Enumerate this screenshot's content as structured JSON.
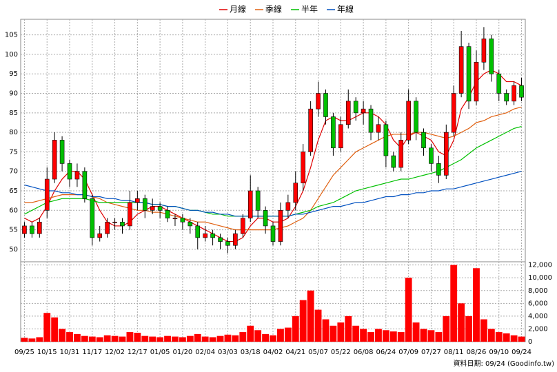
{
  "chart_data": {
    "type": "candlestick",
    "categories": [
      "09/25",
      null,
      null,
      "10/15",
      null,
      null,
      "10/31",
      null,
      null,
      "11/17",
      null,
      null,
      "12/02",
      null,
      null,
      "12/17",
      null,
      null,
      "01/05",
      null,
      null,
      "01/20",
      null,
      null,
      "02/04",
      null,
      null,
      "03/03",
      null,
      null,
      "03/18",
      null,
      null,
      "04/02",
      null,
      null,
      "04/21",
      null,
      null,
      "05/07",
      null,
      null,
      "05/22",
      null,
      null,
      "06/08",
      null,
      null,
      "06/24",
      null,
      null,
      "07/09",
      null,
      null,
      "07/27",
      null,
      null,
      "08/11",
      null,
      null,
      "08/26",
      null,
      null,
      "09/10",
      null,
      null,
      "09/24"
    ],
    "open": [
      54,
      56,
      54,
      60,
      68,
      78,
      72,
      68,
      70,
      63,
      53,
      54,
      57,
      57,
      56,
      62,
      63,
      60,
      61,
      60,
      58,
      58,
      57,
      56,
      53,
      54,
      53,
      52,
      51,
      54,
      58,
      65,
      60,
      56,
      52,
      60,
      62,
      67,
      75,
      86,
      90,
      84,
      76,
      82,
      88,
      85,
      86,
      80,
      82,
      74,
      71,
      78,
      88,
      80,
      76,
      72,
      69,
      80,
      90,
      102,
      88,
      98,
      104,
      95,
      90,
      88,
      92
    ],
    "high": [
      57,
      57,
      58,
      71,
      80,
      79,
      73,
      72,
      71,
      64,
      56,
      58,
      58,
      58,
      65,
      65,
      64,
      63,
      62,
      61,
      59,
      59,
      58,
      57,
      56,
      55,
      54,
      53,
      55,
      59,
      69,
      66,
      61,
      57,
      62,
      64,
      70,
      77,
      88,
      93,
      91,
      85,
      84,
      91,
      89,
      88,
      87,
      84,
      83,
      75,
      80,
      91,
      89,
      81,
      77,
      74,
      82,
      92,
      106,
      103,
      101,
      107,
      105,
      96,
      91,
      93,
      94
    ],
    "low": [
      53,
      53,
      53,
      58,
      67,
      70,
      66,
      66,
      62,
      51,
      52,
      53,
      55,
      54,
      55,
      60,
      58,
      59,
      58,
      57,
      56,
      55,
      54,
      50,
      52,
      51,
      50,
      49,
      50,
      53,
      57,
      58,
      54,
      51,
      51,
      58,
      60,
      65,
      74,
      84,
      82,
      74,
      75,
      81,
      83,
      82,
      78,
      78,
      71,
      70,
      70,
      77,
      78,
      74,
      70,
      67,
      68,
      79,
      89,
      86,
      87,
      96,
      93,
      88,
      87,
      87,
      88
    ],
    "close": [
      56,
      54,
      57,
      68,
      78,
      72,
      68,
      70,
      63,
      53,
      54,
      57,
      57,
      56,
      62,
      63,
      60,
      61,
      60,
      58,
      58,
      57,
      56,
      53,
      54,
      53,
      52,
      51,
      54,
      58,
      65,
      60,
      56,
      52,
      60,
      62,
      67,
      75,
      86,
      90,
      84,
      76,
      82,
      88,
      85,
      86,
      80,
      82,
      74,
      71,
      78,
      88,
      80,
      76,
      72,
      69,
      80,
      90,
      102,
      88,
      98,
      104,
      95,
      90,
      88,
      92,
      89
    ],
    "up_color": "#ff0000",
    "down_color": "#00c000",
    "series": [
      {
        "name": "月線",
        "color": "#e00000",
        "values": [
          58,
          57,
          58,
          61,
          65,
          68,
          70,
          70,
          68,
          64,
          60,
          57,
          56,
          56,
          57,
          59,
          60,
          61,
          61,
          60,
          59,
          58,
          57,
          56,
          55,
          54,
          53,
          52,
          52,
          53,
          56,
          58,
          58,
          57,
          57,
          58,
          61,
          65,
          71,
          78,
          83,
          84,
          83,
          83,
          84,
          85,
          85,
          84,
          82,
          78,
          76,
          79,
          80,
          79,
          78,
          75,
          74,
          78,
          86,
          89,
          93,
          95,
          96,
          95,
          93,
          93,
          92
        ]
      },
      {
        "name": "季線",
        "color": "#e06010",
        "values": [
          62,
          62,
          62.5,
          63,
          63.5,
          64,
          64,
          64,
          64,
          63.5,
          63,
          62,
          61.5,
          61,
          60.5,
          60,
          60,
          59.5,
          59.5,
          59,
          58.5,
          58,
          57.5,
          57,
          57,
          56.5,
          56,
          55.5,
          55,
          55,
          55,
          55,
          55,
          55,
          55.5,
          56,
          57,
          58,
          60,
          63,
          66,
          69,
          71,
          73,
          75,
          76,
          77,
          78,
          79,
          79.5,
          79.5,
          79.5,
          80,
          80,
          79.5,
          79,
          78.5,
          79,
          80,
          81,
          82.5,
          83,
          84,
          84.5,
          85,
          86,
          86.5
        ]
      },
      {
        "name": "半年",
        "color": "#00c000",
        "values": [
          59,
          60,
          61,
          62,
          62.5,
          63,
          63,
          63,
          63,
          62.5,
          62,
          62,
          62,
          62,
          62,
          62,
          62,
          61.5,
          61.5,
          61,
          61,
          60.5,
          60,
          60,
          59.5,
          59,
          59,
          58.5,
          58.5,
          58.5,
          58.5,
          58.5,
          58.5,
          58.5,
          58.5,
          58.5,
          59,
          59.5,
          60,
          61,
          61.5,
          62,
          63,
          64,
          65,
          65.5,
          66,
          66.5,
          67,
          67.5,
          68,
          68,
          68.5,
          69,
          69.5,
          70,
          71,
          72,
          73,
          74.5,
          76,
          77,
          78,
          79,
          80,
          81,
          81.5
        ]
      },
      {
        "name": "年線",
        "color": "#0050c0",
        "values": [
          66.5,
          66,
          65.5,
          65,
          65,
          64.5,
          64.5,
          64,
          64,
          63.5,
          63.5,
          63,
          63,
          62.5,
          62.5,
          62,
          62,
          61.5,
          61.5,
          61,
          61,
          60.5,
          60,
          60,
          59.5,
          59.5,
          59,
          59,
          58.5,
          58.5,
          58.5,
          58.5,
          58.5,
          58.5,
          58.5,
          58.5,
          59,
          59,
          59.5,
          60,
          60.5,
          61,
          61,
          61.5,
          62,
          62,
          62.5,
          63,
          63.5,
          63.5,
          64,
          64,
          64.5,
          64.5,
          65,
          65,
          65.5,
          65.5,
          66,
          66.5,
          67,
          67.5,
          68,
          68.5,
          69,
          69.5,
          70
        ]
      }
    ],
    "ylim": [
      46.8,
      109
    ],
    "yticks": [
      50,
      55,
      60,
      65,
      70,
      75,
      80,
      85,
      90,
      95,
      100,
      105
    ],
    "grid": true,
    "volume": {
      "color": "#ff0000",
      "values": [
        600,
        500,
        700,
        4500,
        3800,
        2000,
        1500,
        1200,
        900,
        800,
        700,
        1000,
        900,
        800,
        1500,
        1400,
        900,
        800,
        700,
        900,
        800,
        700,
        900,
        1200,
        800,
        700,
        900,
        1100,
        1000,
        1500,
        2500,
        1800,
        1200,
        1000,
        2000,
        2200,
        4000,
        6500,
        8000,
        5000,
        3500,
        2500,
        3000,
        4000,
        2500,
        2000,
        1500,
        2000,
        1800,
        1600,
        1500,
        10000,
        3000,
        2000,
        1800,
        1500,
        4000,
        12000,
        6000,
        4000,
        11500,
        3500,
        2000,
        1500,
        1300,
        1000,
        800
      ],
      "ylim": [
        0,
        12500
      ],
      "yticks": [
        0,
        {
          "value": 2000,
          "label": "2,000"
        },
        {
          "value": 4000,
          "label": "4,000"
        },
        {
          "value": 6000,
          "label": "6,000"
        },
        {
          "value": 8000,
          "label": "8,000"
        },
        {
          "value": 10000,
          "label": "10,000"
        },
        {
          "value": 12000,
          "label": "12,000"
        }
      ]
    },
    "source": "資料日期: 09/24 (Goodinfo.tw)"
  }
}
